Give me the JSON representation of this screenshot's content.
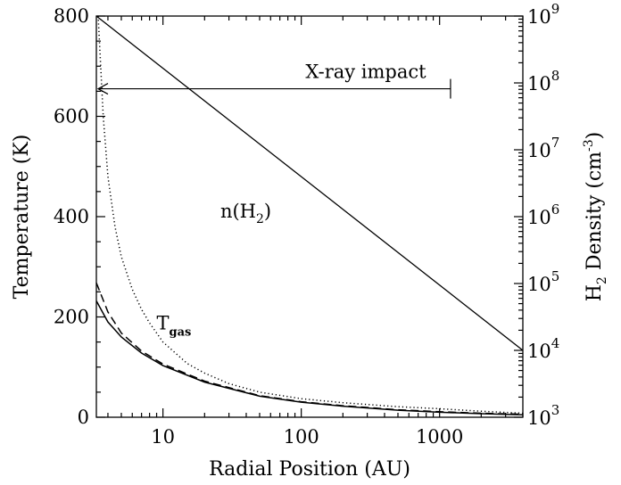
{
  "chart_data": {
    "type": "line",
    "xlabel": "Radial Position (AU)",
    "ylabel": "Temperature (K)",
    "y2label": {
      "base": "H",
      "sub": "2",
      "rest": " Density (cm",
      "sup": "-3",
      "close": ")"
    },
    "x_scale": "log",
    "xlim": [
      3.3,
      4000
    ],
    "ylim": [
      0,
      800
    ],
    "y2_scale": "log",
    "y2lim": [
      1000,
      1000000000
    ],
    "x_ticks": [
      {
        "value": 10,
        "label": "10"
      },
      {
        "value": 100,
        "label": "100"
      },
      {
        "value": 1000,
        "label": "1000"
      }
    ],
    "y_ticks": [
      {
        "value": 0,
        "label": "0"
      },
      {
        "value": 200,
        "label": "200"
      },
      {
        "value": 400,
        "label": "400"
      },
      {
        "value": 600,
        "label": "600"
      },
      {
        "value": 800,
        "label": "800"
      }
    ],
    "y2_ticks": [
      {
        "value": 1000,
        "base": "10",
        "exp": "3"
      },
      {
        "value": 10000,
        "base": "10",
        "exp": "4"
      },
      {
        "value": 100000,
        "base": "10",
        "exp": "5"
      },
      {
        "value": 1000000,
        "base": "10",
        "exp": "6"
      },
      {
        "value": 10000000,
        "base": "10",
        "exp": "7"
      },
      {
        "value": 100000000,
        "base": "10",
        "exp": "8"
      },
      {
        "value": 1000000000,
        "base": "10",
        "exp": "9"
      }
    ],
    "series": [
      {
        "style": "solid",
        "axis": "left",
        "x": [
          3.3,
          4,
          5,
          7,
          10,
          20,
          50,
          100,
          200,
          500,
          1000,
          2000,
          4000
        ],
        "values": [
          232,
          190,
          160,
          128,
          103,
          70,
          42,
          30,
          22,
          14,
          10,
          7,
          5
        ]
      },
      {
        "style": "dashed",
        "axis": "left",
        "x": [
          3.3,
          4,
          5,
          7,
          10,
          20,
          50,
          100,
          200,
          500,
          1000,
          2000,
          4000
        ],
        "values": [
          268,
          210,
          168,
          132,
          106,
          72,
          43,
          31,
          23,
          15,
          11,
          8,
          6
        ]
      },
      {
        "style": "dotted",
        "axis": "left",
        "x": [
          3.4,
          3.7,
          4,
          4.5,
          5,
          6,
          7,
          8,
          10,
          15,
          20,
          30,
          50,
          100,
          200,
          500,
          1000,
          2000,
          4000
        ],
        "values": [
          800,
          600,
          480,
          380,
          320,
          255,
          215,
          188,
          150,
          107,
          88,
          67,
          50,
          37,
          29,
          21,
          17,
          12,
          8
        ]
      },
      {
        "style": "solid",
        "axis": "right",
        "x": [
          3.3,
          4000
        ],
        "values": [
          1000000000,
          10000
        ]
      }
    ],
    "annotations": {
      "xray": {
        "text": "X-ray impact",
        "x_start": 3.3,
        "x_end": 1200,
        "y": 655
      },
      "nh2": {
        "prefix": "n(H",
        "sub": "2",
        "suffix": ")",
        "x": 26,
        "y": 398
      },
      "tgas": {
        "base": "T",
        "sub": "gas",
        "x": 9,
        "y": 175
      }
    }
  }
}
